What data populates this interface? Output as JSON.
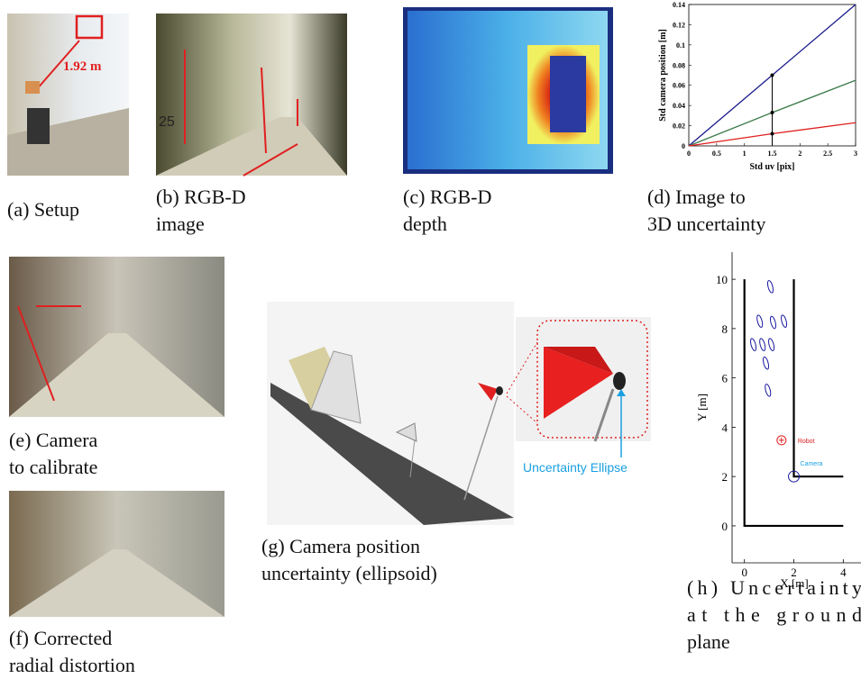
{
  "panels": [
    {
      "caption": [
        "(a) Setup"
      ],
      "annotation": "1.92 m"
    },
    {
      "caption": [
        "(b) RGB-D",
        "image"
      ],
      "annotation": "25"
    },
    {
      "caption": [
        "(c) RGB-D",
        "depth"
      ]
    },
    {
      "caption": [
        "(d) Image to",
        "3D uncertainty"
      ]
    },
    {
      "caption": [
        "(e) Camera",
        "to calibrate"
      ]
    },
    {
      "caption": [
        "(f) Corrected",
        "radial distortion"
      ]
    },
    {
      "caption": [
        "(g) Camera position",
        "uncertainty (ellipsoid)"
      ],
      "annotation": "Uncertainty Ellipse"
    },
    {
      "caption": [
        "(h) Uncertainty",
        "at the ground",
        "plane"
      ]
    }
  ],
  "chart_data": [
    {
      "type": "line",
      "x_label": "Std uv [pix]",
      "y_label": "Std camera position [m]",
      "x": [
        0,
        1.5,
        3
      ],
      "series": [
        {
          "color": "#1a1a8c",
          "values": [
            0,
            0.07,
            0.14
          ]
        },
        {
          "color": "#3a7a4a",
          "values": [
            0,
            0.033,
            0.065
          ]
        },
        {
          "color": "#e02020",
          "values": [
            0,
            0.012,
            0.023
          ]
        }
      ],
      "xlim": [
        0,
        3
      ],
      "ylim": [
        0,
        0.14
      ],
      "xticks": [
        0,
        0.5,
        1,
        1.5,
        2,
        2.5,
        3
      ],
      "yticks": [
        0,
        0.02,
        0.04,
        0.06,
        0.08,
        0.1,
        0.12,
        0.14
      ]
    },
    {
      "type": "scatter",
      "x_label": "X [m]",
      "y_label": "Y [m]",
      "x": [
        1.05,
        0.62,
        1.16,
        1.6,
        0.36,
        0.73,
        1.09,
        0.87,
        0.95
      ],
      "values": [
        9.7,
        8.3,
        8.25,
        8.3,
        7.35,
        7.35,
        7.35,
        6.6,
        5.5
      ],
      "color": "#1a1aa0",
      "walls": [
        {
          "x": [
            0,
            0,
            4
          ],
          "y": [
            10,
            0,
            0
          ]
        },
        {
          "x": [
            2,
            2,
            4
          ],
          "y": [
            10,
            2,
            2
          ]
        }
      ],
      "robot": {
        "label": "Robot",
        "x": 1.5,
        "y": 3.47,
        "color": "#e02020"
      },
      "camera": {
        "label": "Camera",
        "x": 2,
        "y": 2,
        "color": "#1aa0e0"
      },
      "xlim": [
        -0.5,
        4.9
      ],
      "ylim": [
        -1.5,
        11.1
      ],
      "xticks": [
        0,
        2,
        4
      ],
      "yticks": [
        0,
        2,
        4,
        6,
        8,
        10
      ]
    }
  ]
}
